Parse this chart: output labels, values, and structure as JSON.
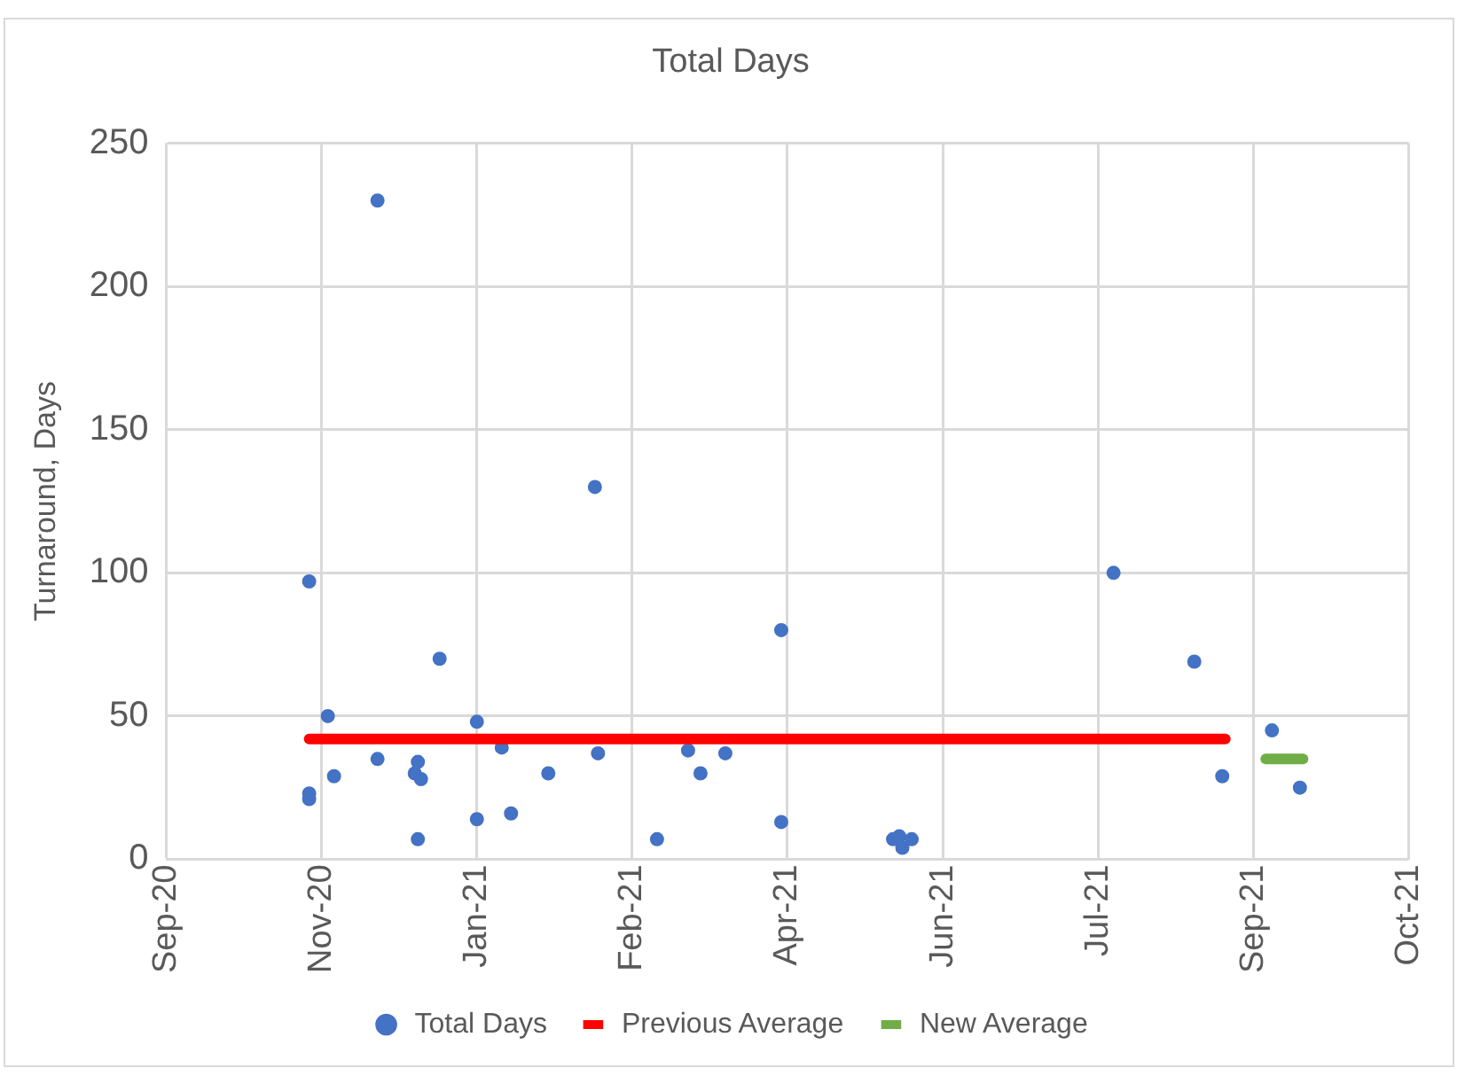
{
  "chart_data": {
    "type": "scatter",
    "title": "Total Days",
    "ylabel": "Turnaround, Days",
    "xlim": [
      "2020-09-25",
      "2021-10-30"
    ],
    "xticks": [
      {
        "value": "2020-09-25",
        "label": "Sep-20"
      },
      {
        "value": "2020-11-14",
        "label": "Nov-20"
      },
      {
        "value": "2021-01-03",
        "label": "Jan-21"
      },
      {
        "value": "2021-02-22",
        "label": "Feb-21"
      },
      {
        "value": "2021-04-13",
        "label": "Apr-21"
      },
      {
        "value": "2021-06-02",
        "label": "Jun-21"
      },
      {
        "value": "2021-07-22",
        "label": "Jul-21"
      },
      {
        "value": "2021-09-10",
        "label": "Sep-21"
      },
      {
        "value": "2021-10-30",
        "label": "Oct-21"
      }
    ],
    "ylim": [
      0,
      250
    ],
    "yticks": [
      0,
      50,
      100,
      150,
      200,
      250
    ],
    "grid": true,
    "legend": "bottom",
    "series": [
      {
        "name": "Total Days",
        "type": "scatter",
        "color": "#4472c4",
        "marker": "circle",
        "x": [
          "2020-11-10",
          "2020-11-10",
          "2020-11-10",
          "2020-11-16",
          "2020-11-18",
          "2020-12-02",
          "2020-12-02",
          "2020-12-15",
          "2020-12-14",
          "2020-12-16",
          "2020-12-15",
          "2020-12-22",
          "2021-01-03",
          "2021-01-03",
          "2021-01-11",
          "2021-01-14",
          "2021-01-26",
          "2021-02-10",
          "2021-02-11",
          "2021-03-02",
          "2021-03-12",
          "2021-03-16",
          "2021-03-24",
          "2021-04-11",
          "2021-04-11",
          "2021-05-17",
          "2021-05-19",
          "2021-05-20",
          "2021-05-23",
          "2021-07-27",
          "2021-08-22",
          "2021-08-31",
          "2021-09-16",
          "2021-09-25"
        ],
        "values": [
          97,
          23,
          21,
          50,
          29,
          230,
          35,
          34,
          30,
          28,
          7,
          70,
          48,
          14,
          39,
          16,
          30,
          130,
          37,
          7,
          38,
          30,
          37,
          80,
          13,
          7,
          8,
          4,
          7,
          100,
          69,
          29,
          45,
          25
        ]
      },
      {
        "name": "Previous Average",
        "type": "line",
        "color": "#ff0000",
        "marker": "none",
        "x": [
          "2020-11-10",
          "2021-09-01"
        ],
        "values": [
          42,
          42
        ]
      },
      {
        "name": "New Average",
        "type": "line",
        "color": "#70ad47",
        "marker": "none",
        "x": [
          "2021-09-14",
          "2021-09-26"
        ],
        "values": [
          35,
          35
        ]
      }
    ]
  }
}
